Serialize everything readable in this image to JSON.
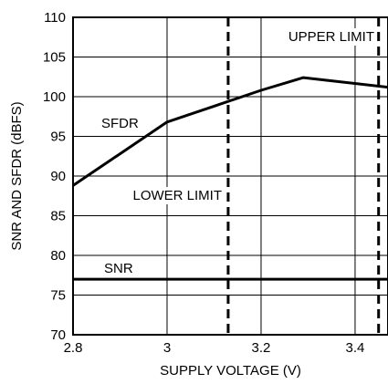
{
  "chart_data": {
    "type": "line",
    "title": "",
    "xlabel": "SUPPLY VOLTAGE (V)",
    "ylabel": "SNR AND SFDR (dBFS)",
    "xlim": [
      2.8,
      3.47
    ],
    "ylim": [
      70,
      110
    ],
    "x_ticks": [
      2.8,
      3.0,
      3.2,
      3.4
    ],
    "x_tick_labels": [
      "2.8",
      "3",
      "3.2",
      "3.4"
    ],
    "y_ticks": [
      70,
      75,
      80,
      85,
      90,
      95,
      100,
      105,
      110
    ],
    "y_tick_labels": [
      "70",
      "75",
      "80",
      "85",
      "90",
      "95",
      "100",
      "105",
      "110"
    ],
    "grid": true,
    "series": [
      {
        "name": "SFDR",
        "x": [
          2.8,
          3.0,
          3.1,
          3.2,
          3.29,
          3.35,
          3.47
        ],
        "y": [
          88.8,
          96.8,
          98.8,
          100.8,
          102.4,
          102.0,
          101.2
        ]
      },
      {
        "name": "SNR",
        "x": [
          2.8,
          3.47
        ],
        "y": [
          77.0,
          77.0
        ]
      }
    ],
    "reference_lines": [
      {
        "label": "LOWER LIMIT",
        "x": 3.13
      },
      {
        "label": "UPPER LIMIT",
        "x": 3.45
      }
    ],
    "annotations": [
      {
        "text": "SFDR"
      },
      {
        "text": "SNR"
      },
      {
        "text": "LOWER LIMIT"
      },
      {
        "text": "UPPER LIMIT"
      }
    ]
  }
}
